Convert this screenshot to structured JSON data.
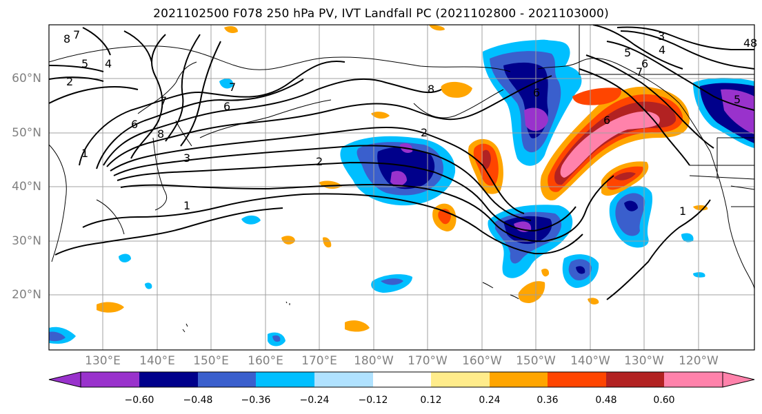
{
  "title": "2021102500 F078 250 hPa PV, IVT Landfall PC (2021102800 - 2021103000)",
  "lat_labels": [
    "60°N",
    "50°N",
    "40°N",
    "30°N",
    "20°N"
  ],
  "lon_labels": [
    "130°E",
    "140°E",
    "150°E",
    "160°E",
    "170°E",
    "180°W",
    "170°W",
    "160°W",
    "150°W",
    "140°W",
    "130°W",
    "120°W"
  ],
  "colorbar": {
    "colors": [
      "#9932cc",
      "#00008b",
      "#3a5fcd",
      "#00bfff",
      "#b0e2ff",
      "#ffffff",
      "#ffec8b",
      "#ffa500",
      "#ff4500",
      "#b22222",
      "#ff82ab"
    ],
    "tick_labels": [
      "−0.60",
      "−0.48",
      "−0.36",
      "−0.24",
      "−0.12",
      "0.12",
      "0.24",
      "0.36",
      "0.48",
      "0.60"
    ]
  },
  "pv_contour_labels": [
    "8",
    "7",
    "5",
    "4",
    "2",
    "1",
    "6",
    "7",
    "6",
    "8",
    "3",
    "2",
    "1",
    "8",
    "2",
    "7",
    "6",
    "6",
    "5",
    "4",
    "3",
    "5",
    "4",
    "6",
    "7",
    "8",
    "1"
  ]
}
